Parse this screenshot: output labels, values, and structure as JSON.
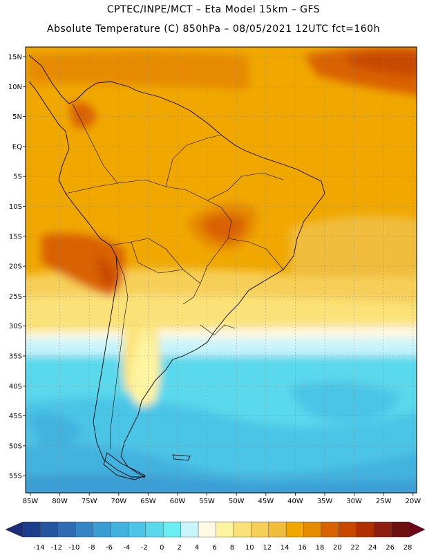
{
  "header": {
    "title_line1": "CPTEC/INPE/MCT –  Eta Model 15km – GFS",
    "title_line2": "Absolute Temperature (C) 850hPa – 08/05/2021 12UTC fct=160h"
  },
  "map": {
    "lat_labels": [
      "15N",
      "10N",
      "5N",
      "EQ",
      "5S",
      "10S",
      "15S",
      "20S",
      "25S",
      "30S",
      "35S",
      "40S",
      "45S",
      "50S",
      "55S"
    ],
    "lon_labels": [
      "85W",
      "80W",
      "75W",
      "70W",
      "65W",
      "60W",
      "55W",
      "50W",
      "45W",
      "40W",
      "35W",
      "30W",
      "25W",
      "20W"
    ],
    "background_color": "#f0a800"
  },
  "colorbar": {
    "labels": [
      "-14",
      "-12",
      "-10",
      "-8",
      "-6",
      "-4",
      "-2",
      "0",
      "2",
      "4",
      "6",
      "8",
      "10",
      "12",
      "14",
      "16",
      "18",
      "20",
      "22",
      "24",
      "26",
      "28"
    ],
    "colors": [
      "#1b3f8c",
      "#2656a0",
      "#2f6cb2",
      "#3585c4",
      "#3a9ed4",
      "#42b2df",
      "#4cc5e6",
      "#5ad8ec",
      "#6aeef4",
      "#c8f4fb",
      "#fff8e2",
      "#fff4a0",
      "#fbe278",
      "#f6cf58",
      "#f0bd3c",
      "#f0a800",
      "#e68a00",
      "#d96200",
      "#c84800",
      "#b03000",
      "#8e1e10",
      "#6e1010"
    ],
    "end_left": "#1b2d7a",
    "end_right": "#6e0018"
  }
}
